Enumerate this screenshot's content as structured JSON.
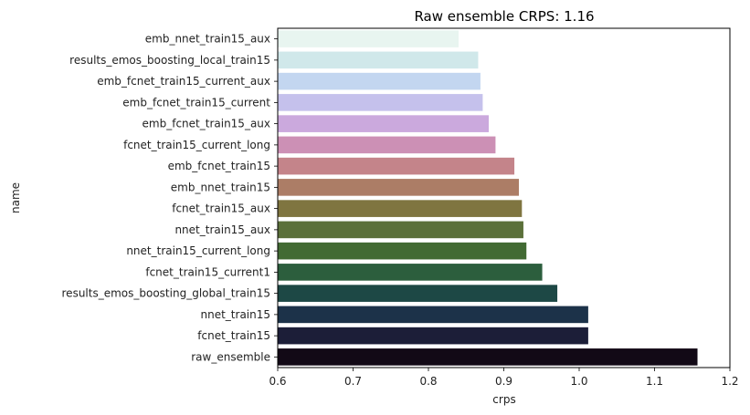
{
  "chart_data": {
    "type": "bar",
    "orientation": "horizontal",
    "title": "Raw ensemble CRPS: 1.16",
    "xlabel": "crps",
    "ylabel": "name",
    "xlim": [
      0.6,
      1.2
    ],
    "xticks": [
      "0.6",
      "0.7",
      "0.8",
      "0.9",
      "1.0",
      "1.1",
      "1.2"
    ],
    "grid": false,
    "categories": [
      "emb_nnet_train15_aux",
      "results_emos_boosting_local_train15",
      "emb_fcnet_train15_current_aux",
      "emb_fcnet_train15_current",
      "emb_fcnet_train15_aux",
      "fcnet_train15_current_long",
      "emb_fcnet_train15",
      "emb_nnet_train15",
      "fcnet_train15_aux",
      "nnet_train15_aux",
      "nnet_train15_current_long",
      "fcnet_train15_current1",
      "results_emos_boosting_global_train15",
      "nnet_train15",
      "fcnet_train15",
      "raw_ensemble"
    ],
    "values": [
      0.84,
      0.866,
      0.869,
      0.872,
      0.88,
      0.889,
      0.914,
      0.92,
      0.924,
      0.926,
      0.93,
      0.951,
      0.971,
      1.012,
      1.012,
      1.157
    ],
    "colors": [
      "#e8f5f0",
      "#d0e8ea",
      "#c3d6f0",
      "#c5c1ec",
      "#cba9dd",
      "#cc90b5",
      "#c4848a",
      "#ac7d66",
      "#7f7540",
      "#5b703a",
      "#426a33",
      "#2c5e3d",
      "#1d4845",
      "#1c3249",
      "#1c1e38",
      "#120916"
    ]
  }
}
